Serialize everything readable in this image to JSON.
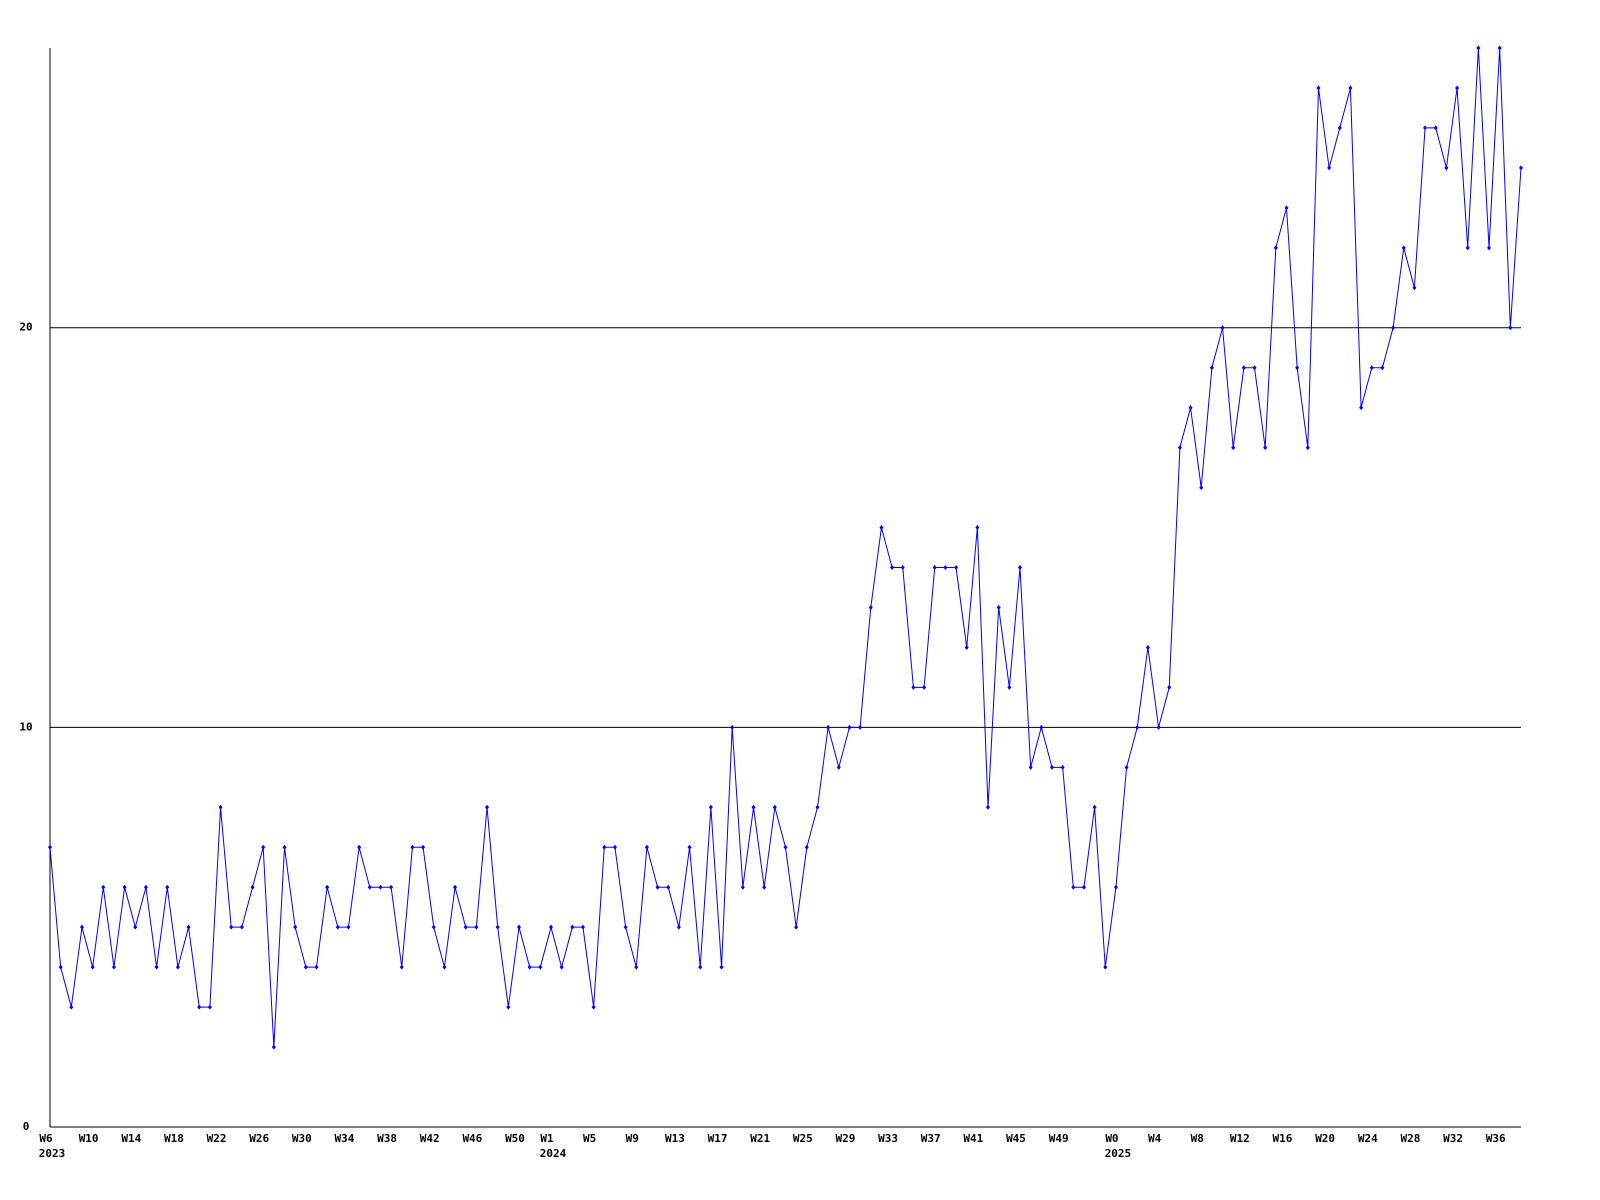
{
  "chart_data": {
    "type": "line",
    "categories": [
      "W6",
      null,
      null,
      null,
      "W10",
      null,
      null,
      null,
      "W14",
      null,
      null,
      null,
      "W18",
      null,
      null,
      null,
      "W22",
      null,
      null,
      null,
      "W26",
      null,
      null,
      null,
      "W30",
      null,
      null,
      null,
      "W34",
      null,
      null,
      null,
      "W38",
      null,
      null,
      null,
      "W42",
      null,
      null,
      null,
      "W46",
      null,
      null,
      null,
      "W50",
      null,
      null,
      "W1",
      null,
      null,
      null,
      "W5",
      null,
      null,
      null,
      "W9",
      null,
      null,
      null,
      "W13",
      null,
      null,
      null,
      "W17",
      null,
      null,
      null,
      "W21",
      null,
      null,
      null,
      "W25",
      null,
      null,
      null,
      "W29",
      null,
      null,
      null,
      "W33",
      null,
      null,
      null,
      "W37",
      null,
      null,
      null,
      "W41",
      null,
      null,
      null,
      "W45",
      null,
      null,
      null,
      "W49",
      null,
      null,
      null,
      null,
      "W0",
      null,
      null,
      null,
      "W4",
      null,
      null,
      null,
      "W8",
      null,
      null,
      null,
      "W12",
      null,
      null,
      null,
      "W16",
      null,
      null,
      null,
      "W20",
      null,
      null,
      null,
      "W24",
      null,
      null,
      null,
      "W28",
      null,
      null,
      null,
      "W32",
      null,
      null,
      null,
      "W36",
      null,
      null
    ],
    "years": [
      "2023",
      null,
      null,
      null,
      null,
      null,
      null,
      null,
      null,
      null,
      null,
      null,
      null,
      null,
      null,
      null,
      null,
      null,
      null,
      null,
      null,
      null,
      null,
      null,
      null,
      null,
      null,
      null,
      null,
      null,
      null,
      null,
      null,
      null,
      null,
      null,
      null,
      null,
      null,
      null,
      null,
      null,
      null,
      null,
      null,
      null,
      null,
      "2024",
      null,
      null,
      null,
      null,
      null,
      null,
      null,
      null,
      null,
      null,
      null,
      null,
      null,
      null,
      null,
      null,
      null,
      null,
      null,
      null,
      null,
      null,
      null,
      null,
      null,
      null,
      null,
      null,
      null,
      null,
      null,
      null,
      null,
      null,
      null,
      null,
      null,
      null,
      null,
      null,
      null,
      null,
      null,
      null,
      null,
      null,
      null,
      null,
      null,
      null,
      null,
      null,
      "2025",
      null,
      null,
      null,
      null,
      null,
      null,
      null,
      null,
      null,
      null,
      null,
      null,
      null,
      null,
      null,
      null,
      null,
      null,
      null,
      null,
      null,
      null,
      null,
      null,
      null,
      null,
      null,
      null,
      null,
      null,
      null,
      null,
      null,
      null,
      null,
      null,
      null,
      null
    ],
    "series": [
      {
        "color": "#0000ff",
        "values": [
          7,
          4,
          3,
          5,
          4,
          6,
          4,
          6,
          5,
          6,
          4,
          6,
          4,
          5,
          3,
          3,
          8,
          5,
          5,
          6,
          7,
          2,
          7,
          5,
          4,
          4,
          6,
          5,
          5,
          7,
          6,
          6,
          6,
          4,
          7,
          7,
          5,
          4,
          6,
          5,
          5,
          8,
          5,
          3,
          5,
          4,
          4,
          5,
          4,
          5,
          5,
          3,
          7,
          7,
          5,
          4,
          7,
          6,
          6,
          5,
          7,
          4,
          8,
          4,
          10,
          6,
          8,
          6,
          8,
          7,
          5,
          7,
          8,
          10,
          9,
          10,
          10,
          13,
          15,
          14,
          14,
          11,
          11,
          14,
          14,
          14,
          12,
          15,
          8,
          13,
          11,
          14,
          9,
          10,
          9,
          9,
          6,
          6,
          8,
          4,
          6,
          9,
          10,
          12,
          10,
          11,
          17,
          18,
          16,
          19,
          20,
          17,
          19,
          19,
          17,
          22,
          23,
          19,
          17,
          26,
          24,
          25,
          26,
          18,
          19,
          19,
          20,
          22,
          21,
          25,
          25,
          24,
          26,
          22,
          27,
          22,
          27,
          20,
          24
        ]
      }
    ],
    "ylim": [
      0,
      27
    ],
    "yticks": [
      0,
      10,
      20
    ],
    "grid": true
  }
}
